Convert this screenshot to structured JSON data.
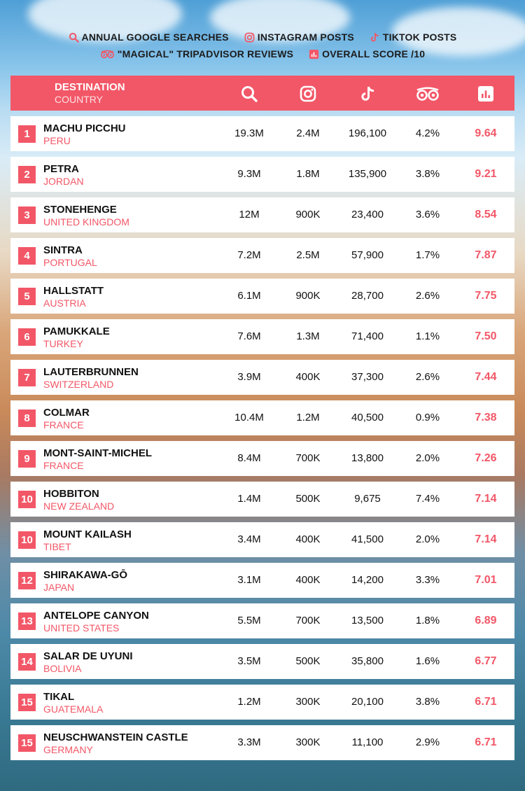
{
  "legend": {
    "searches": "ANNUAL GOOGLE SEARCHES",
    "instagram": "INSTAGRAM POSTS",
    "tiktok": "TIKTOK POSTS",
    "tripadvisor": "\"MAGICAL\" TRIPADVISOR REVIEWS",
    "score": "OVERALL SCORE /10"
  },
  "header": {
    "destination": "DESTINATION",
    "country": "COUNTRY",
    "icons": [
      "search-icon",
      "instagram-icon",
      "tiktok-icon",
      "tripadvisor-icon",
      "bar-chart-icon"
    ]
  },
  "colors": {
    "accent": "#f25767",
    "row_bg": "#ffffff",
    "text": "#111111"
  },
  "chart_data": {
    "type": "table",
    "columns": [
      "DESTINATION / COUNTRY",
      "ANNUAL GOOGLE SEARCHES",
      "INSTAGRAM POSTS",
      "TIKTOK POSTS",
      "\"MAGICAL\" TRIPADVISOR REVIEWS",
      "OVERALL SCORE /10"
    ],
    "rows": [
      {
        "rank": "1",
        "destination": "MACHU PICCHU",
        "country": "PERU",
        "searches": "19.3M",
        "instagram": "2.4M",
        "tiktok": "196,100",
        "tripadvisor": "4.2%",
        "score": "9.64"
      },
      {
        "rank": "2",
        "destination": "PETRA",
        "country": "JORDAN",
        "searches": "9.3M",
        "instagram": "1.8M",
        "tiktok": "135,900",
        "tripadvisor": "3.8%",
        "score": "9.21"
      },
      {
        "rank": "3",
        "destination": "STONEHENGE",
        "country": "UNITED KINGDOM",
        "searches": "12M",
        "instagram": "900K",
        "tiktok": "23,400",
        "tripadvisor": "3.6%",
        "score": "8.54"
      },
      {
        "rank": "4",
        "destination": "SINTRA",
        "country": "PORTUGAL",
        "searches": "7.2M",
        "instagram": "2.5M",
        "tiktok": "57,900",
        "tripadvisor": "1.7%",
        "score": "7.87"
      },
      {
        "rank": "5",
        "destination": "HALLSTATT",
        "country": "AUSTRIA",
        "searches": "6.1M",
        "instagram": "900K",
        "tiktok": "28,700",
        "tripadvisor": "2.6%",
        "score": "7.75"
      },
      {
        "rank": "6",
        "destination": "PAMUKKALE",
        "country": "TURKEY",
        "searches": "7.6M",
        "instagram": "1.3M",
        "tiktok": "71,400",
        "tripadvisor": "1.1%",
        "score": "7.50"
      },
      {
        "rank": "7",
        "destination": "LAUTERBRUNNEN",
        "country": "SWITZERLAND",
        "searches": "3.9M",
        "instagram": "400K",
        "tiktok": "37,300",
        "tripadvisor": "2.6%",
        "score": "7.44"
      },
      {
        "rank": "8",
        "destination": "COLMAR",
        "country": "FRANCE",
        "searches": "10.4M",
        "instagram": "1.2M",
        "tiktok": "40,500",
        "tripadvisor": "0.9%",
        "score": "7.38"
      },
      {
        "rank": "9",
        "destination": "MONT-SAINT-MICHEL",
        "country": "FRANCE",
        "searches": "8.4M",
        "instagram": "700K",
        "tiktok": "13,800",
        "tripadvisor": "2.0%",
        "score": "7.26"
      },
      {
        "rank": "10",
        "destination": "HOBBITON",
        "country": "NEW ZEALAND",
        "searches": "1.4M",
        "instagram": "500K",
        "tiktok": "9,675",
        "tripadvisor": "7.4%",
        "score": "7.14"
      },
      {
        "rank": "10",
        "destination": "MOUNT KAILASH",
        "country": "TIBET",
        "searches": "3.4M",
        "instagram": "400K",
        "tiktok": "41,500",
        "tripadvisor": "2.0%",
        "score": "7.14"
      },
      {
        "rank": "12",
        "destination": "SHIRAKAWA-GŌ",
        "country": "JAPAN",
        "searches": "3.1M",
        "instagram": "400K",
        "tiktok": "14,200",
        "tripadvisor": "3.3%",
        "score": "7.01"
      },
      {
        "rank": "13",
        "destination": "ANTELOPE CANYON",
        "country": "UNITED STATES",
        "searches": "5.5M",
        "instagram": "700K",
        "tiktok": "13,500",
        "tripadvisor": "1.8%",
        "score": "6.89"
      },
      {
        "rank": "14",
        "destination": "SALAR DE UYUNI",
        "country": "BOLIVIA",
        "searches": "3.5M",
        "instagram": "500K",
        "tiktok": "35,800",
        "tripadvisor": "1.6%",
        "score": "6.77"
      },
      {
        "rank": "15",
        "destination": "TIKAL",
        "country": "GUATEMALA",
        "searches": "1.2M",
        "instagram": "300K",
        "tiktok": "20,100",
        "tripadvisor": "3.8%",
        "score": "6.71"
      },
      {
        "rank": "15",
        "destination": "NEUSCHWANSTEIN CASTLE",
        "country": "GERMANY",
        "searches": "3.3M",
        "instagram": "300K",
        "tiktok": "11,100",
        "tripadvisor": "2.9%",
        "score": "6.71"
      }
    ]
  }
}
